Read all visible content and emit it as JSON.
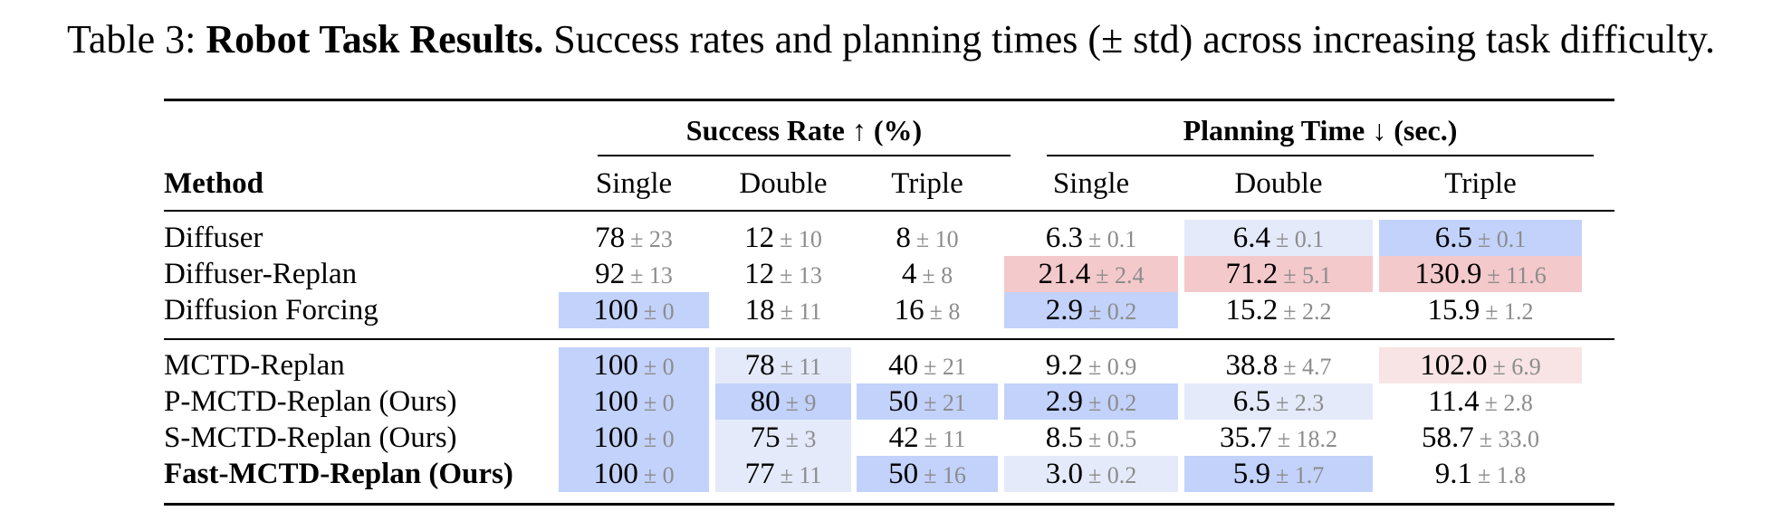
{
  "caption": {
    "label": "Table 3:",
    "title": "Robot Task Results.",
    "text": "Success rates and planning times (± std) across increasing task difficulty."
  },
  "groups": {
    "success": "Success Rate ↑ (%)",
    "planning": "Planning Time ↓ (sec.)"
  },
  "columns": {
    "method": "Method",
    "sr_single": "Single",
    "sr_double": "Double",
    "sr_triple": "Triple",
    "pt_single": "Single",
    "pt_double": "Double",
    "pt_triple": "Triple"
  },
  "colors": {
    "blue_strong": "#c2d2fa",
    "blue_light": "#e4eaf9",
    "red_strong": "#f3c9cb",
    "red_light": "#f8e4e4"
  },
  "rows": [
    {
      "method": "Diffuser",
      "bold": false,
      "cells": [
        {
          "mean": "78",
          "std": "± 23",
          "hl": ""
        },
        {
          "mean": "12",
          "std": "± 10",
          "hl": ""
        },
        {
          "mean": "8",
          "std": "± 10",
          "hl": ""
        },
        {
          "mean": "6.3",
          "std": "± 0.1",
          "hl": ""
        },
        {
          "mean": "6.4",
          "std": "± 0.1",
          "hl": "blue_light"
        },
        {
          "mean": "6.5",
          "std": "± 0.1",
          "hl": "blue_strong"
        }
      ]
    },
    {
      "method": "Diffuser-Replan",
      "bold": false,
      "cells": [
        {
          "mean": "92",
          "std": "± 13",
          "hl": ""
        },
        {
          "mean": "12",
          "std": "± 13",
          "hl": ""
        },
        {
          "mean": "4",
          "std": "± 8",
          "hl": ""
        },
        {
          "mean": "21.4",
          "std": "± 2.4",
          "hl": "red_strong"
        },
        {
          "mean": "71.2",
          "std": "± 5.1",
          "hl": "red_strong"
        },
        {
          "mean": "130.9",
          "std": "± 11.6",
          "hl": "red_strong"
        }
      ]
    },
    {
      "method": "Diffusion Forcing",
      "bold": false,
      "cells": [
        {
          "mean": "100",
          "std": "± 0",
          "hl": "blue_strong"
        },
        {
          "mean": "18",
          "std": "± 11",
          "hl": ""
        },
        {
          "mean": "16",
          "std": "± 8",
          "hl": ""
        },
        {
          "mean": "2.9",
          "std": "± 0.2",
          "hl": "blue_strong"
        },
        {
          "mean": "15.2",
          "std": "± 2.2",
          "hl": ""
        },
        {
          "mean": "15.9",
          "std": "± 1.2",
          "hl": ""
        }
      ]
    },
    {
      "method": "MCTD-Replan",
      "bold": false,
      "cells": [
        {
          "mean": "100",
          "std": "± 0",
          "hl": "blue_strong"
        },
        {
          "mean": "78",
          "std": "± 11",
          "hl": "blue_light"
        },
        {
          "mean": "40",
          "std": "± 21",
          "hl": ""
        },
        {
          "mean": "9.2",
          "std": "± 0.9",
          "hl": ""
        },
        {
          "mean": "38.8",
          "std": "± 4.7",
          "hl": ""
        },
        {
          "mean": "102.0",
          "std": "± 6.9",
          "hl": "red_light"
        }
      ]
    },
    {
      "method": "P-MCTD-Replan (Ours)",
      "bold": false,
      "cells": [
        {
          "mean": "100",
          "std": "± 0",
          "hl": "blue_strong"
        },
        {
          "mean": "80",
          "std": "± 9",
          "hl": "blue_strong"
        },
        {
          "mean": "50",
          "std": "± 21",
          "hl": "blue_strong"
        },
        {
          "mean": "2.9",
          "std": "± 0.2",
          "hl": "blue_strong"
        },
        {
          "mean": "6.5",
          "std": "± 2.3",
          "hl": "blue_light"
        },
        {
          "mean": "11.4",
          "std": "± 2.8",
          "hl": ""
        }
      ]
    },
    {
      "method": "S-MCTD-Replan (Ours)",
      "bold": false,
      "cells": [
        {
          "mean": "100",
          "std": "± 0",
          "hl": "blue_strong"
        },
        {
          "mean": "75",
          "std": "± 3",
          "hl": "blue_light"
        },
        {
          "mean": "42",
          "std": "± 11",
          "hl": ""
        },
        {
          "mean": "8.5",
          "std": "± 0.5",
          "hl": ""
        },
        {
          "mean": "35.7",
          "std": "± 18.2",
          "hl": ""
        },
        {
          "mean": "58.7",
          "std": "± 33.0",
          "hl": ""
        }
      ]
    },
    {
      "method": "Fast-MCTD-Replan (Ours)",
      "bold": true,
      "cells": [
        {
          "mean": "100",
          "std": "± 0",
          "hl": "blue_strong"
        },
        {
          "mean": "77",
          "std": "± 11",
          "hl": "blue_light"
        },
        {
          "mean": "50",
          "std": "± 16",
          "hl": "blue_strong"
        },
        {
          "mean": "3.0",
          "std": "± 0.2",
          "hl": "blue_light"
        },
        {
          "mean": "5.9",
          "std": "± 1.7",
          "hl": "blue_strong"
        },
        {
          "mean": "9.1",
          "std": "± 1.8",
          "hl": ""
        }
      ]
    }
  ]
}
